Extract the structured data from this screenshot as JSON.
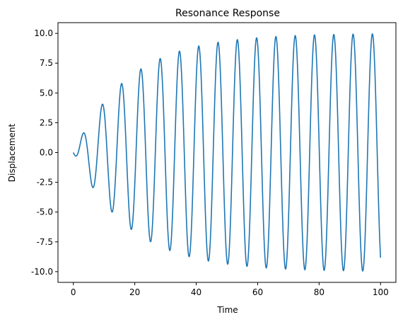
{
  "chart_data": {
    "type": "line",
    "title": "Resonance Response",
    "xlabel": "Time",
    "ylabel": "Displacement",
    "xlim": [
      -5,
      105
    ],
    "ylim": [
      -10.9,
      10.9
    ],
    "x_ticks": [
      0,
      20,
      40,
      60,
      80,
      100
    ],
    "y_ticks": [
      -10.0,
      -7.5,
      -5.0,
      -2.5,
      0.0,
      2.5,
      5.0,
      7.5,
      10.0
    ],
    "grid": false,
    "line_color": "#1f77b4",
    "series": [
      {
        "model": "damped driven oscillator at resonance",
        "x": [
          0,
          1,
          2,
          3,
          4,
          5,
          6,
          7,
          8,
          9,
          10,
          11,
          12,
          13,
          14,
          15,
          16,
          17,
          18,
          19,
          20,
          21,
          22,
          23,
          24,
          25,
          26,
          27,
          28,
          29,
          30,
          31,
          32,
          33,
          34,
          35,
          36,
          37,
          38,
          39,
          40,
          41,
          42,
          43,
          44,
          45,
          46,
          47,
          48,
          49,
          50,
          51,
          52,
          53,
          54,
          55,
          56,
          57,
          58,
          59,
          60,
          61,
          62,
          63,
          64,
          65,
          66,
          67,
          68,
          69,
          70,
          71,
          72,
          73,
          74,
          75,
          76,
          77,
          78,
          79,
          80,
          81,
          82,
          83,
          84,
          85,
          86,
          87,
          88,
          89,
          90,
          91,
          92,
          93,
          94,
          95,
          96,
          97,
          98,
          99,
          100
        ],
        "y_envelope_max": 10.0,
        "y_start": 0.0,
        "y_end": -8.6
      }
    ]
  }
}
